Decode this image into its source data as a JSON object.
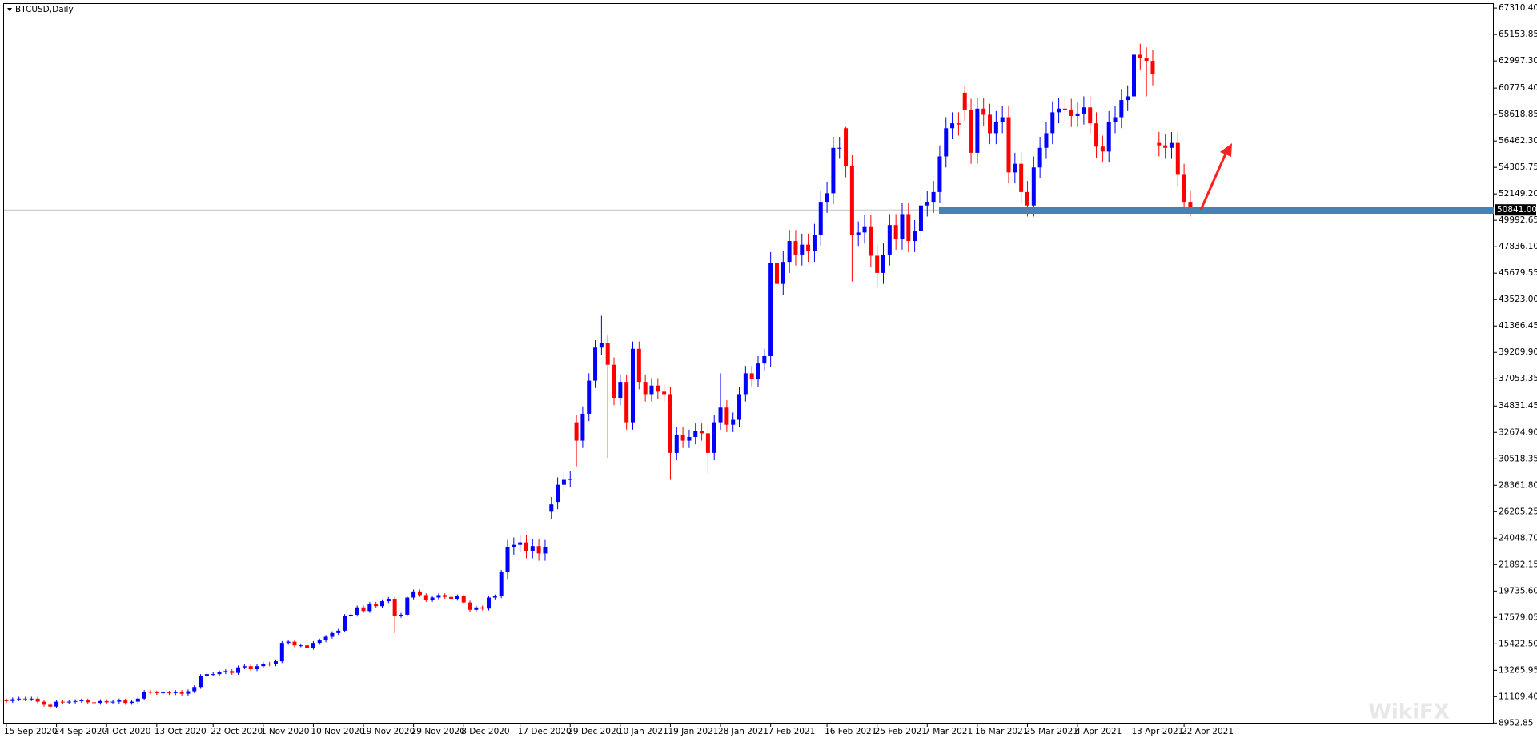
{
  "chart_data": {
    "type": "candlestick",
    "title": "BTCUSD,Daily",
    "watermark": "WikiFX",
    "up_color": "#0000ff",
    "down_color": "#ff0000",
    "current_price": {
      "value": 50841,
      "label": "50841.00"
    },
    "ylim": [
      8910,
      67710
    ],
    "yticks": [
      {
        "value": 67310.4,
        "label": "67310.40"
      },
      65153.85,
      {
        "value": 62997.3,
        "label": "62997.30"
      },
      {
        "value": 60775.4,
        "label": "60775.40"
      },
      58618.85,
      {
        "value": 56462.3,
        "label": "56462.30"
      },
      54305.75,
      {
        "value": 52149.2,
        "label": "52149.20"
      },
      49992.65,
      {
        "value": 47836.1,
        "label": "47836.10"
      },
      45679.55,
      {
        "value": 43523.0,
        "label": "43523.00"
      },
      41366.45,
      {
        "value": 39209.9,
        "label": "39209.90"
      },
      37053.35,
      34831.45,
      {
        "value": 32674.9,
        "label": "32674.90"
      },
      30518.35,
      {
        "value": 28361.8,
        "label": "28361.80"
      },
      26205.25,
      {
        "value": 24048.7,
        "label": "24048.70"
      },
      21892.15,
      {
        "value": 19735.6,
        "label": "19735.60"
      },
      17579.05,
      {
        "value": 15422.5,
        "label": "15422.50"
      },
      13265.95,
      {
        "value": 11109.4,
        "label": "11109.40"
      },
      8952.85
    ],
    "categories": [
      "15 Sep 2020",
      null,
      null,
      null,
      null,
      null,
      null,
      null,
      "24 Sep 2020",
      null,
      null,
      null,
      null,
      null,
      null,
      null,
      "4 Oct 2020",
      null,
      null,
      null,
      null,
      null,
      null,
      null,
      "13 Oct 2020",
      null,
      null,
      null,
      null,
      null,
      null,
      null,
      null,
      "22 Oct 2020",
      null,
      null,
      null,
      null,
      null,
      null,
      null,
      "1 Nov 2020",
      null,
      null,
      null,
      null,
      null,
      null,
      null,
      "10 Nov 2020",
      null,
      null,
      null,
      null,
      null,
      null,
      null,
      "19 Nov 2020",
      null,
      null,
      null,
      null,
      null,
      null,
      null,
      "29 Nov 2020",
      null,
      null,
      null,
      null,
      null,
      null,
      null,
      "8 Dec 2020",
      null,
      null,
      null,
      null,
      null,
      null,
      null,
      null,
      "17 Dec 2020",
      null,
      null,
      null,
      null,
      null,
      null,
      null,
      "29 Dec 2020",
      null,
      null,
      null,
      null,
      null,
      null,
      null,
      "10 Jan 2021",
      null,
      null,
      null,
      null,
      null,
      null,
      null,
      "19 Jan 2021",
      null,
      null,
      null,
      null,
      null,
      null,
      null,
      "28 Jan 2021",
      null,
      null,
      null,
      null,
      null,
      null,
      null,
      "7 Feb 2021",
      null,
      null,
      null,
      null,
      null,
      null,
      null,
      null,
      "16 Feb 2021",
      null,
      null,
      null,
      null,
      null,
      null,
      null,
      "25 Feb 2021",
      null,
      null,
      null,
      null,
      null,
      null,
      null,
      "7 Mar 2021",
      null,
      null,
      null,
      null,
      null,
      null,
      null,
      "16 Mar 2021",
      null,
      null,
      null,
      null,
      null,
      null,
      null,
      "25 Mar 2021",
      null,
      null,
      null,
      null,
      null,
      null,
      null,
      "4 Apr 2021",
      null,
      null,
      null,
      null,
      null,
      null,
      null,
      null,
      "13 Apr 2021",
      null,
      null,
      null,
      null,
      null,
      null,
      null,
      "22 Apr 2021",
      null
    ],
    "open": [
      10800,
      10750,
      10900,
      10950,
      10900,
      10950,
      10700,
      10450,
      10300,
      10700,
      10650,
      10700,
      10750,
      10800,
      10650,
      10600,
      10750,
      10650,
      10700,
      10800,
      10600,
      10700,
      10950,
      11500,
      11450,
      11400,
      11450,
      11400,
      11500,
      11350,
      11550,
      11900,
      12800,
      12950,
      12950,
      13100,
      13200,
      13050,
      13500,
      13600,
      13350,
      13600,
      13800,
      13750,
      14000,
      15500,
      15600,
      15300,
      15300,
      15100,
      15500,
      15700,
      16000,
      16300,
      16500,
      17700,
      17800,
      18400,
      18100,
      18700,
      18500,
      18900,
      19100,
      17700,
      17800,
      19200,
      19700,
      19400,
      19000,
      19200,
      19400,
      19250,
      19100,
      19300,
      18800,
      18200,
      18400,
      18300,
      19200,
      19300,
      21300,
      23300,
      23500,
      23700,
      23000,
      23400,
      22800,
      26200,
      27000,
      28400,
      28800,
      33500,
      32000,
      34200,
      36900,
      39600,
      40000,
      38200,
      35500,
      36800,
      33500,
      39500,
      36800,
      35800,
      36500,
      36000,
      35800,
      31000,
      32500,
      32000,
      32300,
      32800,
      32600,
      31000,
      33500,
      34700,
      33300,
      33700,
      35800,
      37500,
      37000,
      38300,
      38900,
      46500,
      44800,
      46600,
      48300,
      47200,
      48000,
      47500,
      48800,
      51500,
      52200,
      55900,
      57500,
      54400,
      48800,
      49000,
      49500,
      47100,
      45700,
      47200,
      49600,
      48500,
      50500,
      48300,
      49100,
      51200,
      51500,
      52300,
      55200,
      57500,
      57900,
      60400,
      59000,
      55500,
      59100,
      58600,
      57100,
      58000,
      58400,
      53900,
      54600,
      52300,
      51200,
      54300,
      55900,
      57100,
      58800,
      59100,
      59000,
      58500,
      58700,
      59200,
      57900,
      56000,
      55600,
      58000,
      58400,
      59800,
      60100,
      63500,
      63200,
      63000,
      56300,
      56100,
      55900,
      56300,
      53700,
      51500
    ],
    "high": [
      10950,
      11050,
      11100,
      11100,
      11100,
      11100,
      10850,
      10600,
      10850,
      10850,
      10850,
      10900,
      10950,
      10950,
      10800,
      10900,
      10900,
      10850,
      10950,
      10950,
      10850,
      11100,
      11650,
      11650,
      11600,
      11600,
      11600,
      11650,
      11650,
      11700,
      12050,
      12950,
      13100,
      13100,
      13250,
      13350,
      13350,
      13650,
      13750,
      13750,
      13750,
      13950,
      13950,
      14150,
      15650,
      15750,
      15750,
      15450,
      15450,
      15650,
      15850,
      16150,
      16450,
      16650,
      17850,
      17950,
      18550,
      18550,
      18850,
      18850,
      19050,
      19250,
      19250,
      17950,
      19350,
      19850,
      19850,
      19550,
      19350,
      19550,
      19550,
      19400,
      19450,
      19450,
      18950,
      18550,
      18550,
      19350,
      19450,
      21450,
      23900,
      24100,
      24300,
      24300,
      24000,
      24000,
      23900,
      27400,
      29000,
      29400,
      29500,
      34100,
      34800,
      37500,
      40200,
      42200,
      40600,
      38800,
      37400,
      37400,
      40100,
      40100,
      37400,
      37100,
      37100,
      36600,
      36400,
      33100,
      33100,
      32900,
      33400,
      33400,
      33200,
      34100,
      37500,
      35300,
      34300,
      36400,
      38100,
      38100,
      38900,
      39500,
      47400,
      47400,
      47500,
      49200,
      49200,
      48900,
      48900,
      49700,
      52400,
      53100,
      56800,
      56800,
      57600,
      55300,
      49900,
      50400,
      50400,
      48000,
      48100,
      50500,
      50500,
      51400,
      51400,
      50000,
      52100,
      52400,
      53200,
      56100,
      58400,
      58800,
      58800,
      61000,
      59900,
      60000,
      60000,
      59500,
      58900,
      59300,
      59300,
      55500,
      55500,
      53200,
      55200,
      56800,
      58000,
      59700,
      60000,
      60000,
      59900,
      59600,
      60100,
      60100,
      58800,
      56900,
      58900,
      59300,
      60700,
      61000,
      64900,
      64400,
      64100,
      63900,
      57200,
      57000,
      57200,
      57200,
      54600,
      52400
    ],
    "low": [
      10600,
      10600,
      10750,
      10750,
      10750,
      10550,
      10300,
      10150,
      10150,
      10500,
      10500,
      10550,
      10600,
      10500,
      10450,
      10450,
      10500,
      10500,
      10550,
      10450,
      10450,
      10550,
      10800,
      11300,
      11250,
      11250,
      11250,
      11250,
      11200,
      11200,
      11400,
      11750,
      12650,
      12800,
      12800,
      12950,
      12900,
      12900,
      13350,
      13200,
      13200,
      13450,
      13600,
      13600,
      13850,
      15350,
      15150,
      15150,
      14950,
      14950,
      15350,
      15550,
      15850,
      16150,
      16350,
      17550,
      17650,
      17950,
      17950,
      18350,
      18350,
      18750,
      16300,
      17550,
      17650,
      19050,
      19250,
      18850,
      18850,
      19050,
      19100,
      18950,
      18950,
      18650,
      18050,
      18050,
      18150,
      18150,
      19050,
      19150,
      20700,
      22700,
      22900,
      22400,
      22400,
      22200,
      22200,
      25600,
      26400,
      27800,
      28200,
      29900,
      31400,
      33600,
      36300,
      39000,
      30600,
      34900,
      34900,
      32900,
      32900,
      36200,
      35200,
      35200,
      35400,
      35200,
      28800,
      30400,
      31400,
      31400,
      31700,
      32000,
      29300,
      30400,
      32900,
      32700,
      32700,
      33100,
      35200,
      36400,
      36400,
      37700,
      38000,
      43900,
      43900,
      45700,
      46300,
      46300,
      46600,
      46600,
      47900,
      50600,
      51300,
      55000,
      53500,
      45000,
      47900,
      48100,
      46200,
      44600,
      44800,
      46300,
      47600,
      47600,
      47400,
      47400,
      48200,
      50300,
      50600,
      51400,
      54300,
      56600,
      56900,
      58100,
      54600,
      54600,
      57700,
      56200,
      56200,
      57100,
      53000,
      53000,
      51400,
      50300,
      50300,
      53400,
      55000,
      56200,
      57900,
      58100,
      57600,
      57600,
      57800,
      57000,
      55100,
      54700,
      54700,
      57100,
      57500,
      58900,
      59200,
      62300,
      60100,
      61000,
      55200,
      55000,
      55000,
      52800,
      50600,
      50300
    ],
    "close": [
      10750,
      10900,
      10950,
      10900,
      10950,
      10700,
      10450,
      10300,
      10700,
      10650,
      10700,
      10750,
      10800,
      10650,
      10600,
      10750,
      10650,
      10700,
      10800,
      10600,
      10700,
      10950,
      11500,
      11450,
      11400,
      11450,
      11400,
      11500,
      11350,
      11550,
      11900,
      12800,
      12950,
      12950,
      13100,
      13200,
      13050,
      13500,
      13600,
      13350,
      13600,
      13800,
      13750,
      14000,
      15500,
      15600,
      15300,
      15300,
      15100,
      15500,
      15700,
      16000,
      16300,
      16500,
      17700,
      17800,
      18400,
      18100,
      18700,
      18500,
      18900,
      19100,
      17700,
      17800,
      19200,
      19700,
      19400,
      19000,
      19200,
      19400,
      19250,
      19100,
      19300,
      18800,
      18200,
      18400,
      18300,
      19200,
      19300,
      21300,
      23300,
      23500,
      23700,
      23000,
      23400,
      22800,
      23300,
      26800,
      28400,
      28800,
      28900,
      32000,
      34200,
      36900,
      39600,
      40000,
      38200,
      35500,
      36800,
      33500,
      39500,
      36800,
      35800,
      36500,
      36000,
      35800,
      31000,
      32500,
      32000,
      32300,
      32800,
      32600,
      31000,
      33500,
      34700,
      33300,
      33700,
      35800,
      37500,
      37000,
      38300,
      38900,
      46500,
      44800,
      46600,
      48300,
      47200,
      48000,
      47500,
      48800,
      51500,
      52200,
      55900,
      55900,
      54400,
      48800,
      49000,
      49500,
      47100,
      45700,
      47200,
      49600,
      48500,
      50500,
      48300,
      49100,
      51200,
      51500,
      52300,
      55200,
      57500,
      57900,
      57800,
      59000,
      55500,
      59100,
      58600,
      57100,
      58000,
      58400,
      53900,
      54600,
      52300,
      51200,
      54300,
      55900,
      57100,
      58800,
      59100,
      59000,
      58500,
      58700,
      59200,
      57900,
      56000,
      55600,
      58000,
      58400,
      59800,
      60100,
      63500,
      63200,
      63000,
      61900,
      56100,
      55900,
      56300,
      53700,
      51500,
      50900
    ]
  }
}
